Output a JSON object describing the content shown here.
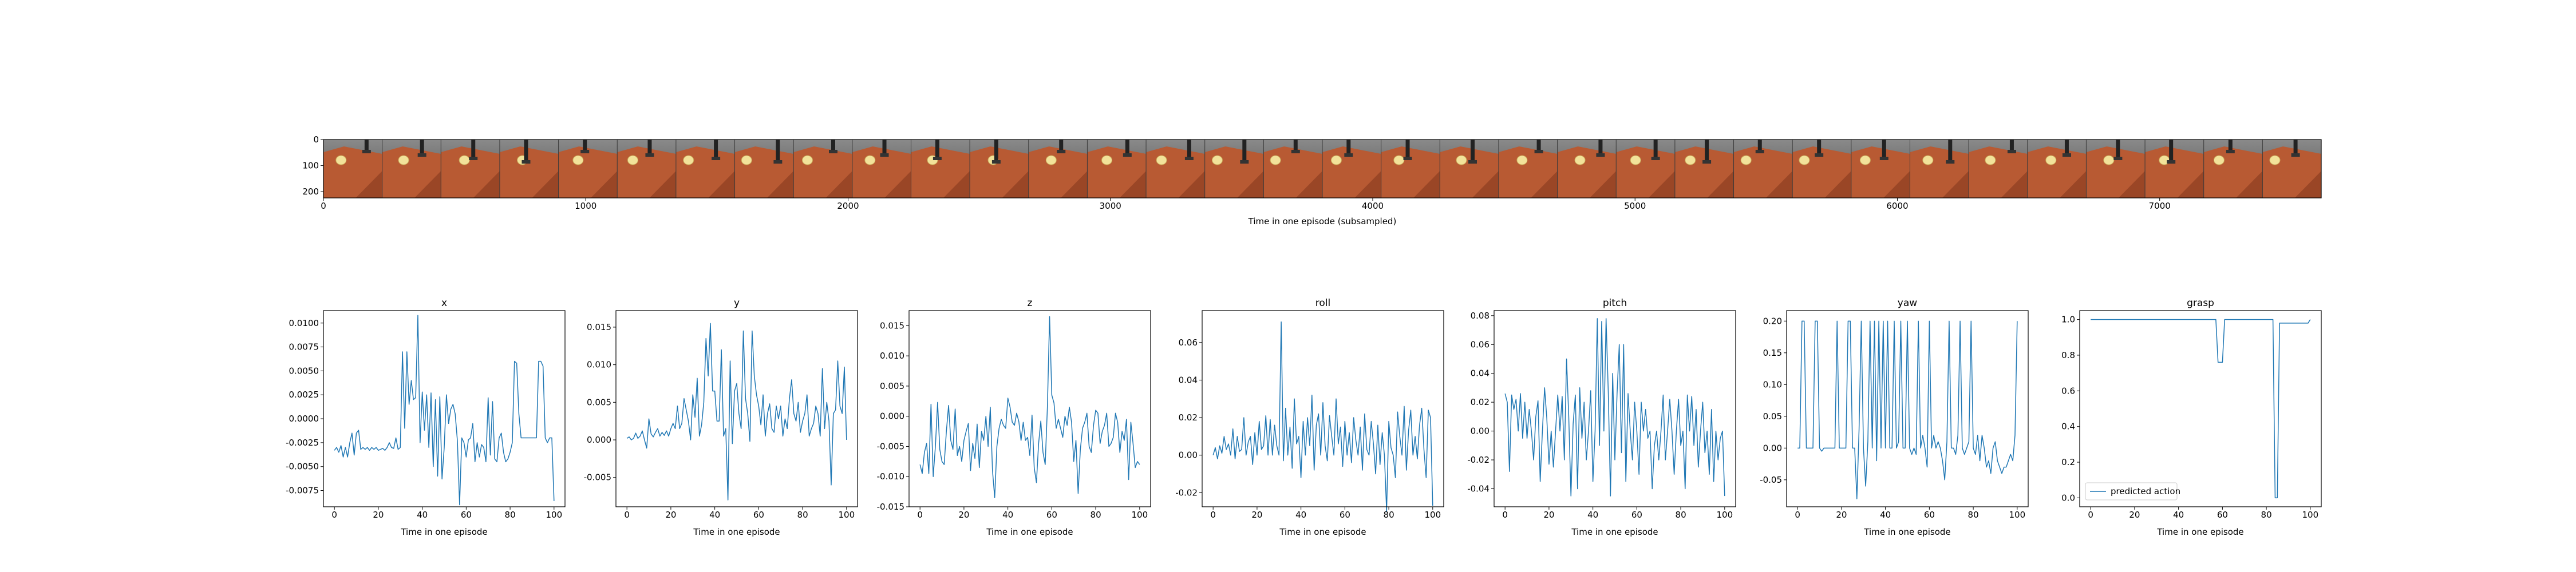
{
  "chart_data": [
    {
      "type": "image_strip",
      "xlabel": "Time in one episode (subsampled)",
      "xticks": [
        0,
        1000,
        2000,
        3000,
        4000,
        5000,
        6000,
        7000
      ],
      "yticks": [
        0,
        100,
        200
      ],
      "xlim": [
        0,
        7616
      ],
      "ylim": [
        224,
        0
      ],
      "frame_count": 34,
      "colors": {
        "table": "#b85a33",
        "background": "#6a6a6a",
        "object": "#f2e29a",
        "gripper": "#222222"
      }
    },
    {
      "type": "line",
      "title": "x",
      "xlabel": "Time in one episode",
      "xlim": [
        -5,
        105
      ],
      "ylim": [
        -0.0092,
        0.0113
      ],
      "xticks": [
        0,
        20,
        40,
        60,
        80,
        100
      ],
      "yticks": [
        "-0.0075",
        "-0.0050",
        "-0.0025",
        "0.0000",
        "0.0025",
        "0.0050",
        "0.0075",
        "0.0100"
      ],
      "series": [
        {
          "color": "#1f77b4",
          "values": [
            -0.0033,
            -0.003,
            -0.0035,
            -0.0028,
            -0.004,
            -0.003,
            -0.004,
            -0.0025,
            -0.0015,
            -0.0038,
            -0.0015,
            -0.0012,
            -0.0032,
            -0.003,
            -0.0032,
            -0.003,
            -0.0033,
            -0.003,
            -0.0032,
            -0.003,
            -0.0033,
            -0.0032,
            -0.0031,
            -0.0033,
            -0.003,
            -0.0025,
            -0.003,
            -0.0031,
            -0.002,
            -0.0032,
            -0.003,
            0.007,
            -0.001,
            0.007,
            0.0015,
            0.004,
            0.002,
            0.0022,
            0.0108,
            -0.0025,
            0.0028,
            -0.0012,
            0.0025,
            -0.003,
            0.0027,
            -0.005,
            0.002,
            -0.006,
            0.0023,
            -0.0063,
            -0.003,
            0.0025,
            -0.0005,
            0.001,
            0.0015,
            0.0005,
            -0.0023,
            -0.009,
            -0.002,
            -0.0025,
            -0.004,
            -0.0022,
            -0.002,
            -0.0005,
            -0.0045,
            -0.0025,
            -0.004,
            -0.0027,
            -0.003,
            -0.0045,
            0.0022,
            -0.0038,
            0.0018,
            -0.0042,
            -0.0045,
            -0.002,
            -0.0015,
            -0.0035,
            -0.0045,
            -0.0042,
            -0.0035,
            -0.0025,
            0.006,
            0.0058,
            0.0005,
            -0.002,
            -0.002,
            -0.002,
            -0.002,
            -0.002,
            -0.002,
            -0.002,
            -0.002,
            0.006,
            0.006,
            0.0055,
            -0.002,
            -0.0025,
            -0.002,
            -0.002,
            -0.0086
          ]
        }
      ]
    },
    {
      "type": "line",
      "title": "y",
      "xlabel": "Time in one episode",
      "xlim": [
        -5,
        105
      ],
      "ylim": [
        -0.0089,
        0.0172
      ],
      "xticks": [
        0,
        20,
        40,
        60,
        80,
        100
      ],
      "yticks": [
        "-0.005",
        "0.000",
        "0.005",
        "0.010",
        "0.015"
      ],
      "series": [
        {
          "color": "#1f77b4",
          "values": [
            0.0002,
            0.0004,
            0.0,
            0.0002,
            0.0009,
            0.0002,
            0.0005,
            0.0012,
            0.0,
            -0.0011,
            0.0028,
            0.0008,
            0.0004,
            0.001,
            0.0015,
            0.0005,
            0.001,
            0.0006,
            0.0012,
            0.0005,
            0.0015,
            0.0022,
            0.0015,
            0.0045,
            0.0015,
            0.0022,
            0.0055,
            0.004,
            0.0025,
            0.0,
            0.006,
            0.003,
            0.0082,
            0.0005,
            0.002,
            0.005,
            0.0135,
            0.0085,
            0.0155,
            0.0065,
            0.0065,
            0.0025,
            0.0025,
            0.012,
            0.0005,
            0.0015,
            -0.008,
            0.0105,
            -0.0005,
            0.0065,
            0.0075,
            0.0035,
            0.0015,
            0.0145,
            0.0055,
            0.0035,
            -0.0002,
            0.0145,
            0.0085,
            0.006,
            0.0045,
            0.002,
            0.006,
            0.0005,
            0.0035,
            0.0048,
            0.0015,
            0.001,
            0.0045,
            0.0028,
            0.0045,
            0.0005,
            0.0028,
            0.0015,
            0.0055,
            0.008,
            0.0035,
            0.0025,
            0.005,
            0.001,
            0.0025,
            0.0035,
            0.006,
            0.0005,
            0.0015,
            0.0022,
            0.0045,
            0.0035,
            0.0005,
            0.0095,
            0.0015,
            0.005,
            0.0025,
            -0.006,
            0.0035,
            0.004,
            0.0105,
            0.0045,
            0.0035,
            0.0097,
            0.0
          ]
        }
      ]
    },
    {
      "type": "line",
      "title": "z",
      "xlabel": "Time in one episode",
      "xlim": [
        -5,
        105
      ],
      "ylim": [
        -0.015,
        0.0175
      ],
      "xticks": [
        0,
        20,
        40,
        60,
        80,
        100
      ],
      "yticks": [
        "-0.015",
        "-0.010",
        "-0.005",
        "0.000",
        "0.005",
        "0.010",
        "0.015"
      ],
      "series": [
        {
          "color": "#1f77b4",
          "values": [
            -0.008,
            -0.0095,
            -0.006,
            -0.0045,
            -0.0095,
            0.002,
            -0.01,
            -0.005,
            0.0023,
            -0.0055,
            -0.0075,
            -0.008,
            -0.0025,
            0.0018,
            -0.004,
            -0.0055,
            0.0012,
            -0.0065,
            -0.005,
            -0.0075,
            -0.004,
            -0.0025,
            -0.0012,
            -0.009,
            -0.0045,
            -0.007,
            -0.0013,
            -0.0085,
            -0.0025,
            -0.004,
            0.0,
            -0.005,
            0.0015,
            -0.009,
            -0.0135,
            -0.005,
            -0.002,
            -0.0005,
            -0.0015,
            -0.002,
            0.003,
            0.0015,
            -0.001,
            -0.0015,
            0.0005,
            -0.0009,
            -0.004,
            -0.001,
            -0.004,
            -0.0035,
            -0.0065,
            0.0002,
            -0.0085,
            -0.011,
            -0.0045,
            -0.0008,
            -0.006,
            -0.008,
            0.0015,
            0.0165,
            0.0035,
            0.0022,
            -0.002,
            -0.0005,
            -0.002,
            -0.0035,
            0.0,
            -0.0015,
            0.0015,
            -0.001,
            -0.0075,
            -0.004,
            -0.0128,
            -0.0055,
            -0.002,
            -0.001,
            0.0005,
            -0.005,
            -0.006,
            -0.0015,
            0.001,
            0.0005,
            -0.0045,
            -0.0025,
            -0.0015,
            0.0005,
            -0.005,
            -0.0045,
            -0.0035,
            0.0005,
            -0.001,
            -0.006,
            -0.0025,
            -0.004,
            -0.0005,
            -0.0105,
            -0.001,
            -0.0045,
            -0.0085,
            -0.0075,
            -0.008
          ]
        }
      ]
    },
    {
      "type": "line",
      "title": "roll",
      "xlabel": "Time in one episode",
      "xlim": [
        -5,
        105
      ],
      "ylim": [
        -0.0275,
        0.077
      ],
      "xticks": [
        0,
        20,
        40,
        60,
        80,
        100
      ],
      "yticks": [
        "-0.02",
        "0.00",
        "0.02",
        "0.04",
        "0.06"
      ],
      "series": [
        {
          "color": "#1f77b4",
          "values": [
            0.0,
            0.004,
            -0.002,
            0.005,
            0.001,
            0.01,
            0.003,
            0.006,
            0.0,
            0.014,
            -0.002,
            0.01,
            0.002,
            0.003,
            0.02,
            0.0,
            0.007,
            0.01,
            -0.005,
            0.012,
            0.0,
            0.018,
            0.003,
            0.005,
            0.021,
            0.0,
            0.019,
            0.0,
            0.016,
            0.005,
            0.0,
            0.071,
            -0.003,
            0.025,
            0.0,
            0.015,
            -0.007,
            0.03,
            0.006,
            0.01,
            -0.012,
            0.018,
            0.0,
            0.02,
            0.005,
            0.032,
            -0.008,
            0.016,
            0.022,
            0.0,
            0.028,
            0.005,
            -0.003,
            0.021,
            0.01,
            0.0,
            0.03,
            0.006,
            0.015,
            -0.006,
            0.018,
            0.0,
            0.012,
            -0.004,
            0.02,
            0.008,
            0.0,
            0.015,
            -0.008,
            0.022,
            0.003,
            0.0,
            0.018,
            0.006,
            -0.01,
            0.016,
            -0.005,
            0.012,
            0.0,
            -0.03,
            0.018,
            0.004,
            0.0,
            -0.012,
            0.023,
            0.01,
            0.0,
            0.026,
            -0.008,
            0.013,
            0.024,
            0.0,
            0.01,
            -0.002,
            0.016,
            0.025,
            0.003,
            -0.012,
            0.024,
            0.02,
            -0.027
          ]
        }
      ]
    },
    {
      "type": "line",
      "title": "pitch",
      "xlabel": "Time in one episode",
      "xlim": [
        -5,
        105
      ],
      "ylim": [
        -0.0525,
        0.0835
      ],
      "xticks": [
        0,
        20,
        40,
        60,
        80,
        100
      ],
      "yticks": [
        "-0.04",
        "-0.02",
        "0.00",
        "0.02",
        "0.04",
        "0.06",
        "0.08"
      ],
      "series": [
        {
          "color": "#1f77b4",
          "values": [
            0.026,
            0.02,
            -0.028,
            0.025,
            0.015,
            0.022,
            0.0,
            0.026,
            -0.005,
            0.02,
            -0.005,
            0.015,
            0.0,
            -0.02,
            0.01,
            0.021,
            -0.035,
            0.0,
            0.03,
            0.009,
            -0.023,
            0.0,
            -0.025,
            0.0,
            0.025,
            0.0,
            0.024,
            -0.02,
            0.05,
            0.01,
            -0.045,
            0.005,
            0.025,
            -0.04,
            0.03,
            -0.005,
            0.02,
            -0.02,
            0.0,
            0.028,
            -0.035,
            0.0,
            0.078,
            -0.01,
            0.076,
            0.0,
            0.078,
            0.027,
            -0.045,
            0.04,
            -0.02,
            0.026,
            0.06,
            -0.015,
            0.06,
            -0.035,
            0.026,
            0.0,
            -0.02,
            0.02,
            0.0,
            -0.03,
            0.02,
            0.0,
            0.015,
            -0.005,
            0.0,
            -0.04,
            -0.01,
            0.0,
            -0.02,
            0.0,
            0.025,
            -0.02,
            0.0,
            0.022,
            0.0,
            -0.03,
            0.0,
            0.022,
            -0.01,
            0.0,
            -0.04,
            0.025,
            0.0,
            0.024,
            -0.01,
            0.015,
            -0.025,
            0.0,
            0.02,
            -0.015,
            0.0,
            -0.03,
            0.015,
            -0.035,
            0.0,
            -0.02,
            -0.005,
            0.0,
            -0.045
          ]
        }
      ]
    },
    {
      "type": "line",
      "title": "yaw",
      "xlabel": "Time in one episode",
      "xlim": [
        -5,
        105
      ],
      "ylim": [
        -0.0925,
        0.2165
      ],
      "xticks": [
        0,
        20,
        40,
        60,
        80,
        100
      ],
      "yticks": [
        "-0.05",
        "0.00",
        "0.05",
        "0.10",
        "0.15",
        "0.20"
      ],
      "series": [
        {
          "color": "#1f77b4",
          "values": [
            0.0,
            0.0,
            0.2,
            0.2,
            0.0,
            0.0,
            0.0,
            0.0,
            0.2,
            0.2,
            0.0,
            -0.005,
            0.0,
            0.0,
            0.0,
            0.0,
            0.0,
            0.0,
            0.2,
            0.0,
            0.0,
            0.0,
            0.0,
            0.2,
            0.2,
            0.0,
            0.0,
            -0.08,
            0.03,
            0.2,
            0.0,
            -0.06,
            0.01,
            0.2,
            0.0,
            0.2,
            -0.02,
            0.2,
            0.0,
            0.2,
            0.0,
            0.2,
            0.0,
            0.0,
            0.2,
            0.0,
            0.01,
            0.2,
            0.0,
            0.0,
            0.2,
            0.0,
            -0.01,
            0.0,
            -0.01,
            0.2,
            0.0,
            0.02,
            0.0,
            -0.03,
            0.2,
            0.0,
            0.02,
            0.0,
            0.01,
            0.0,
            -0.02,
            -0.05,
            0.01,
            0.2,
            0.0,
            0.0,
            -0.01,
            0.02,
            0.2,
            0.0,
            -0.01,
            0.0,
            0.01,
            0.2,
            0.0,
            -0.01,
            0.02,
            -0.02,
            0.02,
            0.0,
            -0.03,
            -0.02,
            -0.04,
            0.0,
            0.01,
            -0.02,
            -0.03,
            -0.04,
            -0.03,
            -0.03,
            -0.02,
            -0.01,
            -0.02,
            0.02,
            0.2
          ]
        }
      ]
    },
    {
      "type": "line",
      "title": "grasp",
      "xlabel": "Time in one episode",
      "xlim": [
        -5,
        105
      ],
      "ylim": [
        -0.05,
        1.05
      ],
      "xticks": [
        0,
        20,
        40,
        60,
        80,
        100
      ],
      "yticks": [
        "0.0",
        "0.2",
        "0.4",
        "0.6",
        "0.8",
        "1.0"
      ],
      "legend": {
        "position": "lower-left",
        "label": "predicted action"
      },
      "series": [
        {
          "name": "predicted action",
          "color": "#1f77b4",
          "values": [
            1,
            1,
            1,
            1,
            1,
            1,
            1,
            1,
            1,
            1,
            1,
            1,
            1,
            1,
            1,
            1,
            1,
            1,
            1,
            1,
            1,
            1,
            1,
            1,
            1,
            1,
            1,
            1,
            1,
            1,
            1,
            1,
            1,
            1,
            1,
            1,
            1,
            1,
            1,
            1,
            1,
            1,
            1,
            1,
            1,
            1,
            1,
            1,
            1,
            1,
            1,
            1,
            1,
            1,
            1,
            1,
            1,
            1,
            0.76,
            0.76,
            0.76,
            1,
            1,
            1,
            1,
            1,
            1,
            1,
            1,
            1,
            1,
            1,
            1,
            1,
            1,
            1,
            1,
            1,
            1,
            1,
            1,
            1,
            1,
            1,
            0,
            0,
            0.98,
            0.98,
            0.98,
            0.98,
            0.98,
            0.98,
            0.98,
            0.98,
            0.98,
            0.98,
            0.98,
            0.98,
            0.98,
            0.98,
            1
          ]
        }
      ]
    }
  ]
}
